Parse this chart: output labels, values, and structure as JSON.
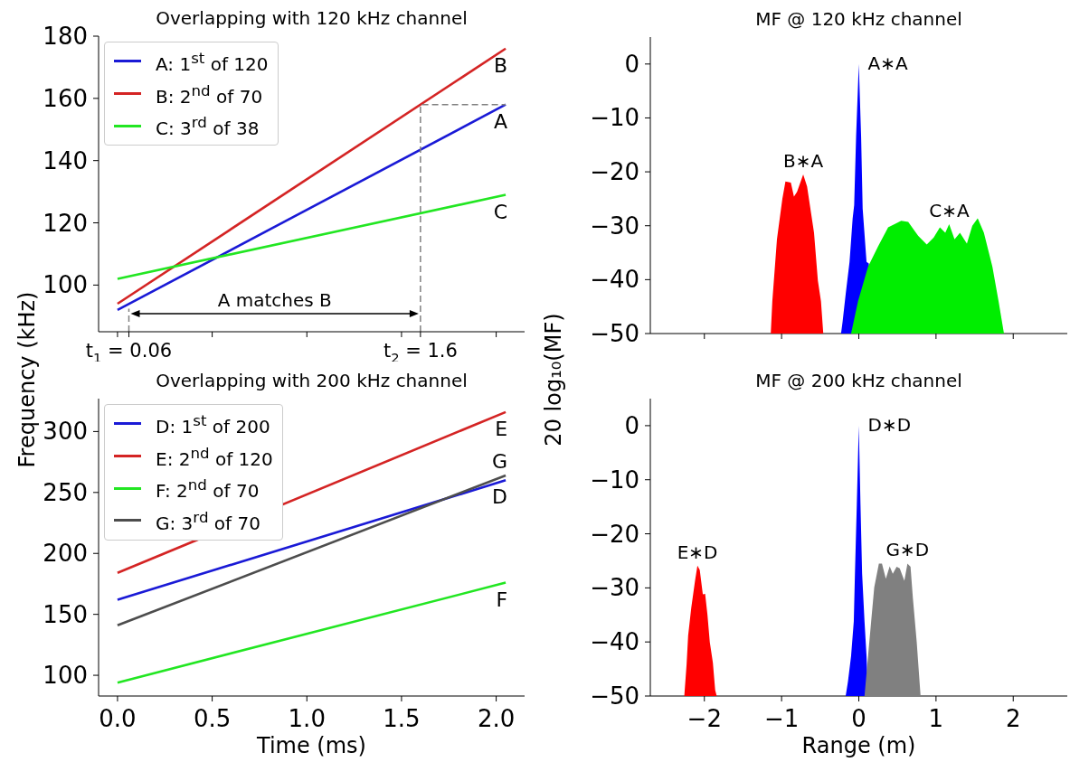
{
  "chart_data": [
    {
      "type": "line",
      "title": "Overlapping with 120 kHz channel",
      "ylabel": "Frequency (kHz)",
      "marker": "none",
      "legend": "top left",
      "tick_labels": "y",
      "xlim": [
        -0.1,
        2.15
      ],
      "ylim": [
        85,
        180
      ],
      "xticks": [
        0,
        0.06,
        0.5,
        1,
        1.5,
        1.6,
        2
      ],
      "yticks": [
        100,
        120,
        140,
        160,
        180
      ],
      "series": [
        {
          "name": "A: 1$^{st}$ of 120",
          "color": "#1a1ad6",
          "x": [
            0,
            2.05
          ],
          "values": [
            92,
            158
          ]
        },
        {
          "name": "B: 2$^{nd}$ of 70",
          "color": "#d42424",
          "x": [
            0,
            2.05
          ],
          "values": [
            94,
            176
          ]
        },
        {
          "name": "C: 3$^{rd}$ of 38",
          "color": "#22e622",
          "x": [
            0,
            2.05
          ],
          "values": [
            102,
            129
          ]
        },
        {
          "color": "#808080",
          "line_style": "dashed",
          "x": [
            0.06,
            0.06
          ],
          "values": [
            85,
            92.4
          ]
        },
        {
          "color": "#808080",
          "line_style": "dashed",
          "x": [
            1.6,
            1.6,
            2.05
          ],
          "values": [
            85,
            158,
            158
          ]
        }
      ],
      "annotations": [
        {
          "text": "B",
          "x": 2.05,
          "y": 176
        },
        {
          "text": "A",
          "x": 2.05,
          "y": 158
        },
        {
          "text": "C",
          "x": 2.05,
          "y": 129
        },
        "A matches B",
        {
          "text": "t$_{1}$ = 0.06",
          "x": 0.06,
          "y": 85
        },
        {
          "text": "t$_{2}$ = 1.6",
          "x": 1.6,
          "y": 85
        }
      ]
    },
    {
      "type": "line",
      "title": "Overlapping with 200 kHz channel",
      "xlabel": "Time (ms)",
      "marker": "none",
      "legend": "top left",
      "xlim": [
        -0.1,
        2.15
      ],
      "ylim": [
        83,
        327
      ],
      "xticks": [
        {
          "value": 0,
          "label": "0.0"
        },
        {
          "value": 0.5,
          "label": "0.5"
        },
        {
          "value": 1,
          "label": "1.0"
        },
        {
          "value": 1.5,
          "label": "1.5"
        },
        {
          "value": 2,
          "label": "2.0"
        }
      ],
      "yticks": [
        100,
        150,
        200,
        250,
        300
      ],
      "series": [
        {
          "name": "D: 1$^{st}$ of 200",
          "color": "#1a1ad6",
          "x": [
            0,
            2.05
          ],
          "values": [
            162,
            260
          ]
        },
        {
          "name": "E: 2$^{nd}$ of 120",
          "color": "#d42424",
          "x": [
            0,
            2.05
          ],
          "values": [
            184,
            316
          ]
        },
        {
          "name": "F: 2$^{nd}$ of 70",
          "color": "#22e622",
          "x": [
            0,
            2.05
          ],
          "values": [
            94,
            176
          ]
        },
        {
          "name": "G: 3$^{rd}$ of 70",
          "color": "#4d4d4d",
          "x": [
            0,
            2.05
          ],
          "values": [
            141,
            264
          ]
        }
      ],
      "annotations": [
        {
          "text": "E",
          "x": 2.05,
          "y": 316
        },
        {
          "text": "G",
          "x": 2.05,
          "y": 264
        },
        {
          "text": "D",
          "x": 2.05,
          "y": 260
        },
        {
          "text": "F",
          "x": 2.05,
          "y": 176
        }
      ]
    },
    {
      "type": "area",
      "title": "MF @ 120 kHz channel",
      "ylabel": "20 log₁₀(MF)",
      "tick_labels": "y",
      "xlim": [
        -2.7,
        2.7
      ],
      "ylim": [
        -50,
        5
      ],
      "xticks": [
        -2,
        -1,
        0,
        1,
        2
      ],
      "yticks": [
        0,
        {
          "value": -10,
          "label": "−10"
        },
        {
          "value": -20,
          "label": "−20"
        },
        {
          "value": -30,
          "label": "−30"
        },
        {
          "value": -40,
          "label": "−40"
        },
        {
          "value": -50,
          "label": "−50"
        }
      ],
      "series": [
        {
          "color": "#ff0000",
          "x": [
            -1.14,
            -1.12,
            -1.06,
            -0.99,
            -0.95,
            -0.88,
            -0.84,
            -0.8,
            -0.72,
            -0.67,
            -0.62,
            -0.58,
            -0.53,
            -0.49,
            -0.46
          ],
          "values": [
            -50,
            -44,
            -32.5,
            -25,
            -21.8,
            -22,
            -24.6,
            -23.7,
            -20.5,
            -22.7,
            -27.5,
            -31.3,
            -40.2,
            -44,
            -50
          ]
        },
        {
          "color": "#0000ff",
          "x": [
            -0.23,
            -0.21,
            -0.17,
            -0.12,
            -0.08,
            -0.06,
            -0.035,
            0,
            0.03,
            0.05,
            0.1,
            0.13,
            0.14,
            0.16
          ],
          "values": [
            -50,
            -47.8,
            -42.7,
            -36.7,
            -28.7,
            -26.2,
            -13.5,
            0,
            -13.5,
            -26.8,
            -36.7,
            -37,
            null,
            -50
          ]
        },
        {
          "color": "#00ee00",
          "x": [
            -0.1,
            -0.01,
            0.12,
            0.25,
            0.38,
            0.55,
            0.64,
            0.77,
            0.88,
            0.97,
            1.05,
            1.12,
            1.17,
            1.24,
            1.31,
            1.4,
            1.47,
            1.54,
            1.62,
            1.73,
            1.81,
            1.88
          ],
          "values": [
            -50,
            -44,
            -37.6,
            -33.8,
            -30.3,
            -29.1,
            -29.3,
            -31.9,
            -33.5,
            -32.2,
            -30.3,
            -31.3,
            -29.7,
            -32.5,
            -31.3,
            -33.3,
            -30,
            -28.6,
            -31.3,
            -37.6,
            -44,
            -50
          ]
        }
      ],
      "annotations": [
        {
          "text": "A∗A",
          "x": 0,
          "y": 0
        },
        {
          "text": "B∗A",
          "x": -0.72,
          "y": -20.5
        },
        {
          "text": "C∗A",
          "x": 1.17,
          "y": -29.7
        }
      ]
    },
    {
      "type": "area",
      "title": "MF @ 200 kHz channel",
      "xlabel": "Range (m)",
      "xlim": [
        -2.7,
        2.7
      ],
      "ylim": [
        -50,
        5
      ],
      "xticks": [
        {
          "value": -2,
          "label": "−2"
        },
        {
          "value": -1,
          "label": "−1"
        },
        0,
        1,
        2
      ],
      "yticks": [
        0,
        {
          "value": -10,
          "label": "−10"
        },
        {
          "value": -20,
          "label": "−20"
        },
        {
          "value": -30,
          "label": "−30"
        },
        {
          "value": -40,
          "label": "−40"
        },
        {
          "value": -50,
          "label": "−50"
        }
      ],
      "series": [
        {
          "color": "#ff0000",
          "x": [
            -2.26,
            -2.23,
            -2.21,
            -2.17,
            -2.12,
            -2.09,
            -2.06,
            -2.02,
            -1.99,
            -1.96,
            -1.93,
            -1.89,
            -1.86,
            -1.84
          ],
          "values": [
            -50,
            -44.1,
            -38.8,
            -33.7,
            -28.6,
            -25.9,
            -26.7,
            -31.2,
            -31.1,
            -35,
            -40,
            -43.8,
            -48.9,
            -50
          ]
        },
        {
          "color": "#0000ff",
          "x": [
            -0.17,
            -0.14,
            -0.1,
            -0.065,
            -0.05,
            -0.026,
            0,
            0.022,
            0.043,
            0.074,
            0.1,
            0.12
          ],
          "values": [
            -50,
            -47.3,
            -42.6,
            -36.2,
            -27.4,
            -14.7,
            0,
            -14.7,
            -27.4,
            -36.2,
            -42.6,
            -50
          ]
        },
        {
          "color": "#808080",
          "x": [
            0.074,
            0.12,
            0.16,
            0.2,
            0.26,
            0.3,
            0.35,
            0.4,
            0.44,
            0.49,
            0.53,
            0.59,
            0.63,
            0.67,
            0.7,
            0.75,
            0.8
          ],
          "values": [
            -50,
            -42.6,
            -36.2,
            -29.9,
            -25.5,
            -25.5,
            -28.3,
            -26,
            -27.4,
            -26.1,
            -26.4,
            -28.7,
            -25.5,
            -26.1,
            -31.8,
            -40,
            -50
          ]
        }
      ],
      "annotations": [
        {
          "text": "D∗D",
          "x": 0,
          "y": 0
        },
        {
          "text": "E∗D",
          "x": -2.09,
          "y": -25.9
        },
        {
          "text": "G∗D",
          "x": 0.63,
          "y": -25.5
        }
      ]
    }
  ]
}
